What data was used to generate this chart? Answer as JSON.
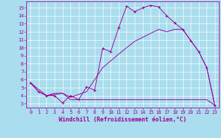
{
  "background_color": "#aaddee",
  "line_color": "#990099",
  "marker": "+",
  "xlabel": "Windchill (Refroidissement éolien,°C)",
  "xlabel_fontsize": 6,
  "xlim": [
    -0.5,
    23.5
  ],
  "ylim": [
    2.5,
    15.8
  ],
  "yticks": [
    3,
    4,
    5,
    6,
    7,
    8,
    9,
    10,
    11,
    12,
    13,
    14,
    15
  ],
  "xticks": [
    0,
    1,
    2,
    3,
    4,
    5,
    6,
    7,
    8,
    9,
    10,
    11,
    12,
    13,
    14,
    15,
    16,
    17,
    18,
    19,
    20,
    21,
    22,
    23
  ],
  "tick_fontsize": 5,
  "series1": [
    [
      0,
      5.6
    ],
    [
      1,
      4.5
    ],
    [
      2,
      4.0
    ],
    [
      3,
      4.0
    ],
    [
      4,
      3.1
    ],
    [
      5,
      4.0
    ],
    [
      6,
      3.5
    ],
    [
      7,
      5.1
    ],
    [
      8,
      4.7
    ],
    [
      9,
      9.9
    ],
    [
      10,
      9.5
    ],
    [
      11,
      12.5
    ],
    [
      12,
      15.2
    ],
    [
      13,
      14.5
    ],
    [
      14,
      15.0
    ],
    [
      15,
      15.3
    ],
    [
      16,
      15.1
    ],
    [
      17,
      14.0
    ],
    [
      18,
      13.1
    ],
    [
      19,
      12.3
    ],
    [
      20,
      10.9
    ],
    [
      21,
      9.5
    ],
    [
      22,
      7.5
    ],
    [
      23,
      2.8
    ]
  ],
  "series2": [
    [
      0,
      5.6
    ],
    [
      2,
      4.0
    ],
    [
      4,
      4.3
    ],
    [
      5,
      3.8
    ],
    [
      7,
      4.5
    ],
    [
      9,
      7.5
    ],
    [
      11,
      9.2
    ],
    [
      13,
      10.8
    ],
    [
      15,
      11.8
    ],
    [
      16,
      12.3
    ],
    [
      17,
      12.0
    ],
    [
      18,
      12.3
    ],
    [
      19,
      12.3
    ],
    [
      20,
      10.9
    ],
    [
      21,
      9.5
    ],
    [
      22,
      7.5
    ],
    [
      23,
      2.8
    ]
  ],
  "series3": [
    [
      0,
      5.6
    ],
    [
      1,
      4.5
    ],
    [
      2,
      4.0
    ],
    [
      3,
      4.3
    ],
    [
      4,
      4.3
    ],
    [
      5,
      3.5
    ],
    [
      6,
      3.5
    ],
    [
      7,
      3.5
    ],
    [
      8,
      3.5
    ],
    [
      9,
      3.5
    ],
    [
      10,
      3.5
    ],
    [
      11,
      3.5
    ],
    [
      12,
      3.5
    ],
    [
      13,
      3.5
    ],
    [
      14,
      3.5
    ],
    [
      15,
      3.5
    ],
    [
      16,
      3.5
    ],
    [
      17,
      3.5
    ],
    [
      18,
      3.5
    ],
    [
      19,
      3.5
    ],
    [
      20,
      3.5
    ],
    [
      21,
      3.5
    ],
    [
      22,
      3.5
    ],
    [
      23,
      2.8
    ]
  ]
}
